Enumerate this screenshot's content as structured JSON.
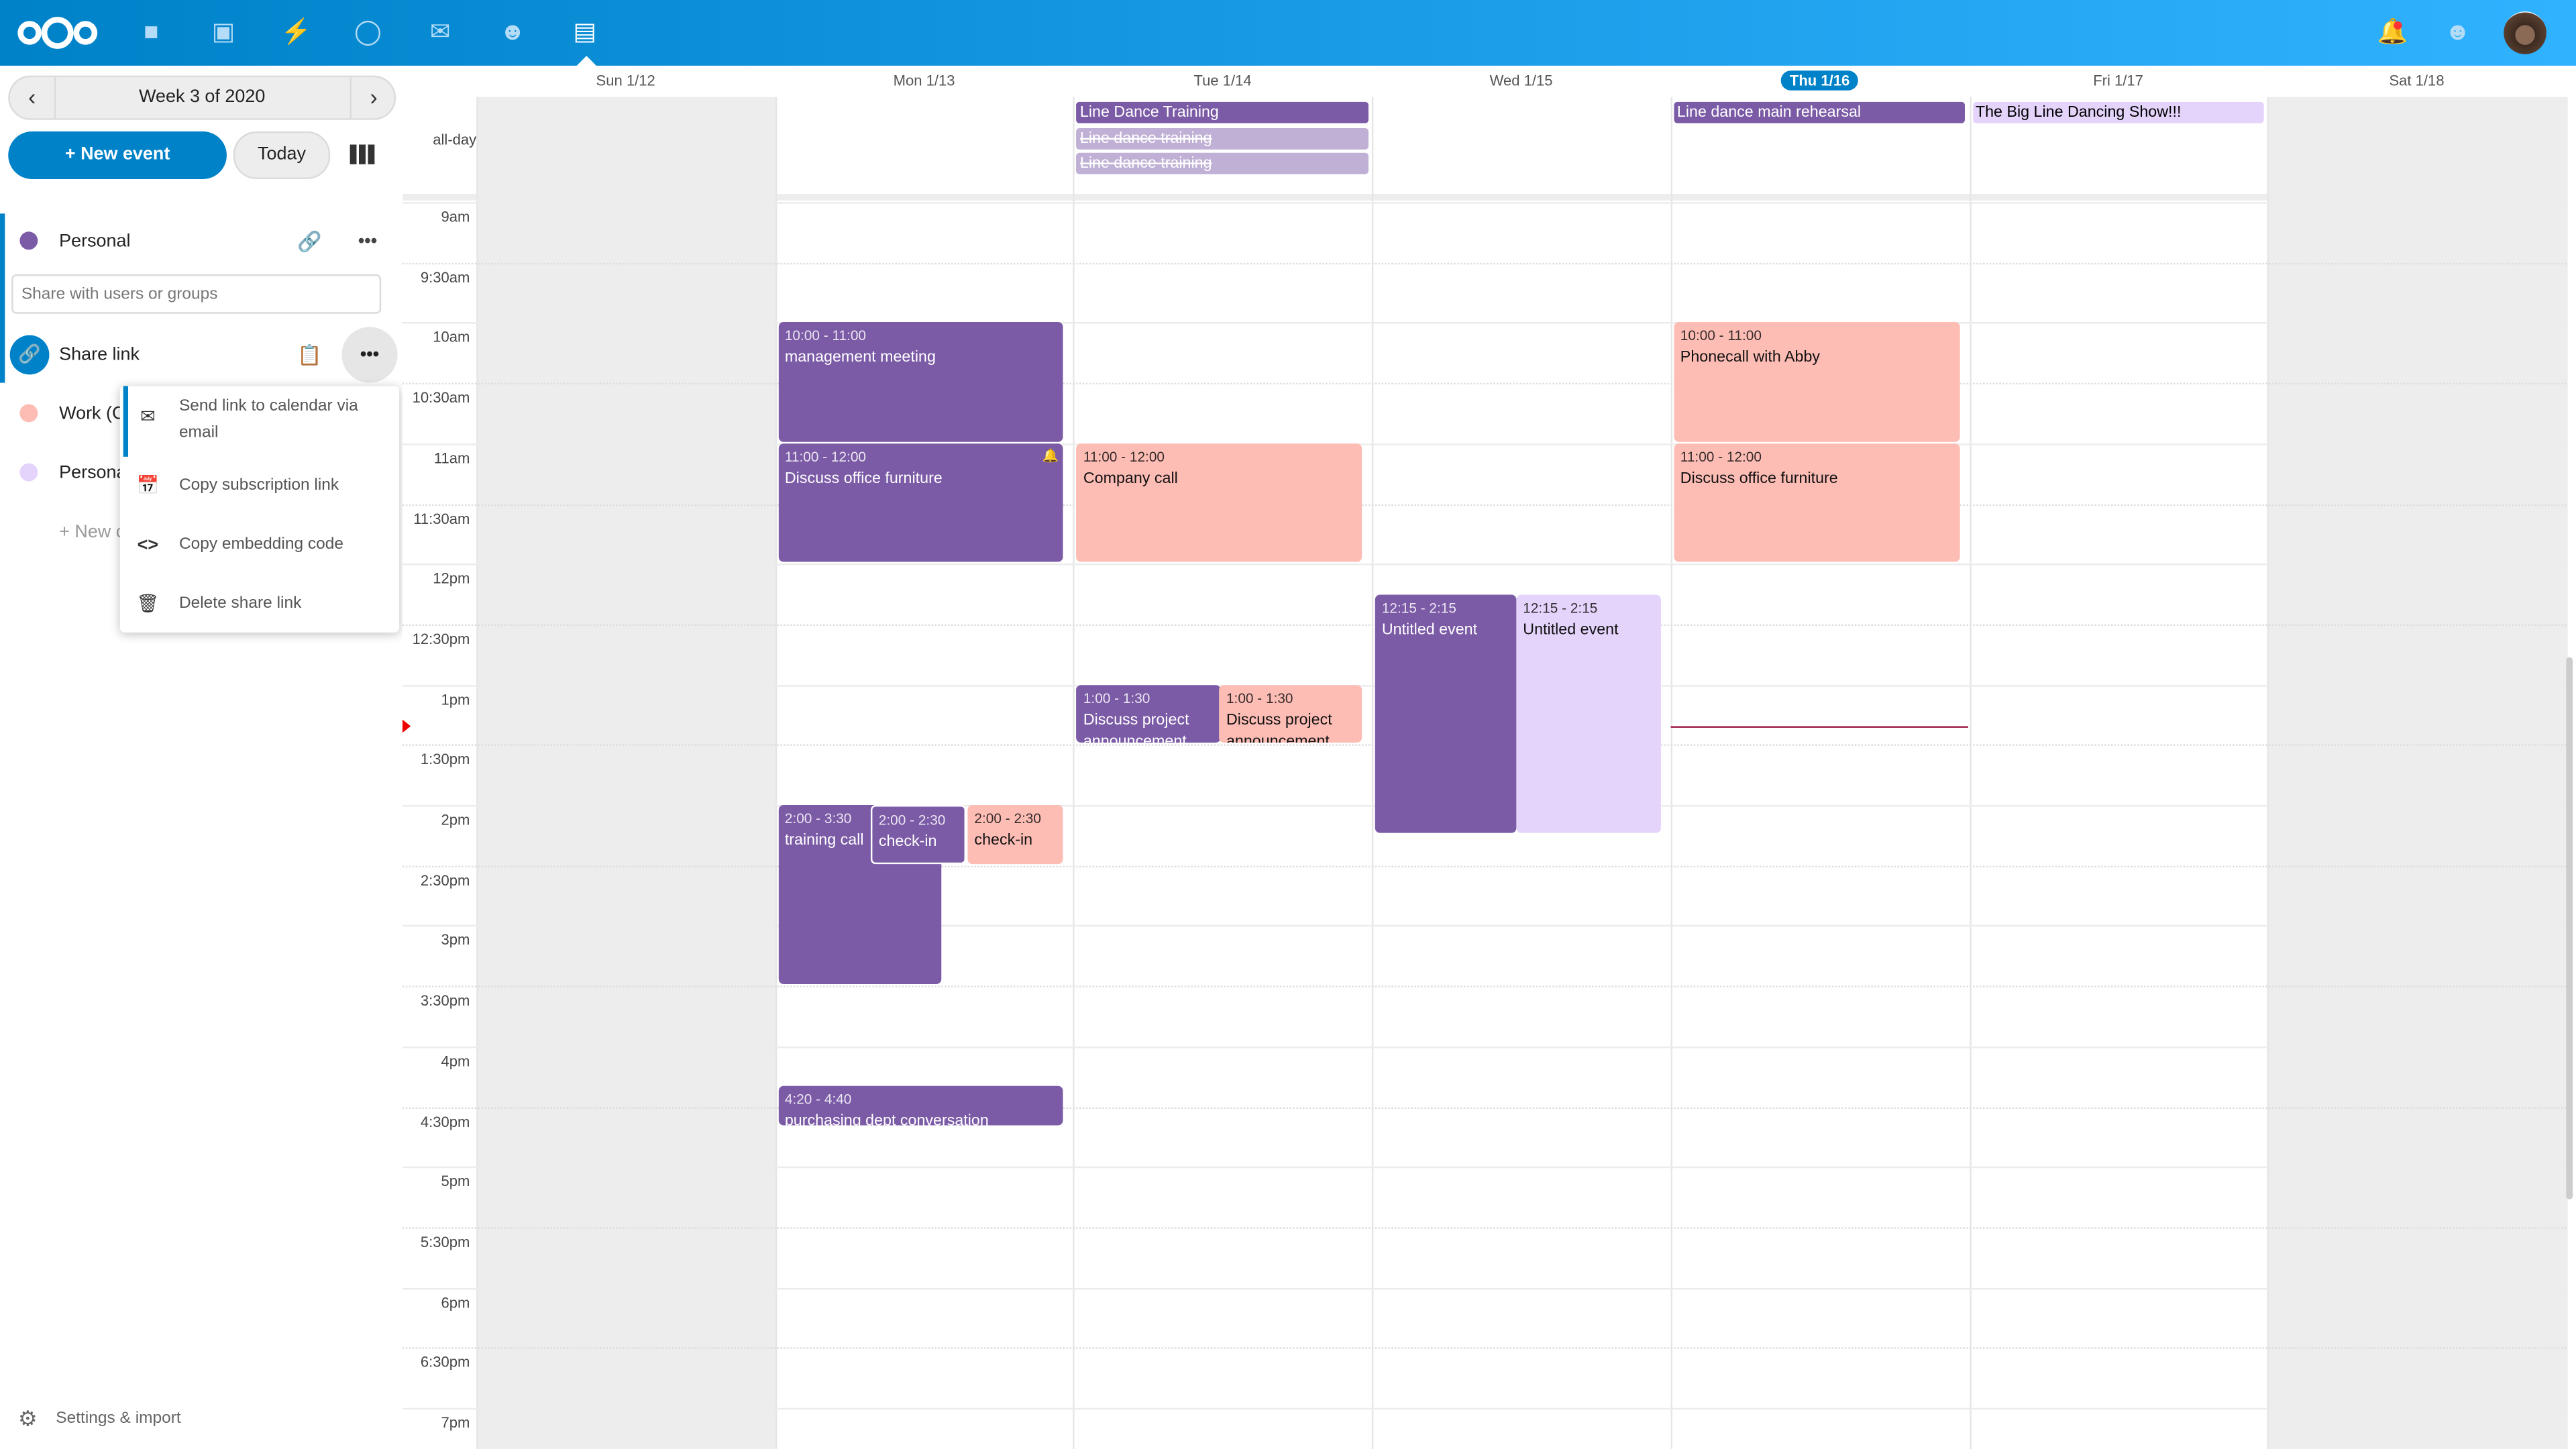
{
  "header": {
    "apps": [
      "files-icon",
      "photos-icon",
      "activity-icon",
      "talk-icon",
      "mail-icon",
      "contacts-icon",
      "calendar-icon"
    ],
    "right_icons": [
      "notifications-icon",
      "contacts-menu-icon",
      "avatar"
    ]
  },
  "sidebar": {
    "week_label": "Week 3 of 2020",
    "new_event": "+ New event",
    "today": "Today",
    "calendars": [
      {
        "name": "Personal",
        "color": "#7b5aa6"
      },
      {
        "name": "Work (C",
        "color": "#fdbdb5"
      },
      {
        "name": "Persona",
        "color": "#e4d4fb"
      }
    ],
    "share_placeholder": "Share with users or groups",
    "share_link": "Share link",
    "new_calendar": "+ New c",
    "menu": [
      "Send link to calendar via email",
      "Copy subscription link",
      "Copy embedding code",
      "Delete share link"
    ],
    "settings": "Settings & import"
  },
  "calendar": {
    "allday_label": "all-day",
    "days": [
      "Sun 1/12",
      "Mon 1/13",
      "Tue 1/14",
      "Wed 1/15",
      "Thu 1/16",
      "Fri 1/17",
      "Sat 1/18"
    ],
    "today_index": 4,
    "times": [
      "9am",
      "9:30am",
      "10am",
      "10:30am",
      "11am",
      "11:30am",
      "12pm",
      "12:30pm",
      "1pm",
      "1:30pm",
      "2pm",
      "2:30pm",
      "3pm",
      "3:30pm",
      "4pm",
      "4:30pm",
      "5pm",
      "5:30pm",
      "6pm",
      "6:30pm",
      "7pm"
    ],
    "allday_events": [
      {
        "day": 2,
        "title": "Line Dance Training",
        "color": "#7b5aa6",
        "struck": false
      },
      {
        "day": 2,
        "title": "Line dance training",
        "color": "#c0b0d5",
        "struck": true
      },
      {
        "day": 2,
        "title": "Line dance training",
        "color": "#c0b0d5",
        "struck": true
      },
      {
        "day": 4,
        "title": "Line dance main rehearsal",
        "color": "#7b5aa6",
        "struck": false
      },
      {
        "day": 5,
        "title": "The Big Line Dancing Show!!!",
        "color": "#e4d4fb",
        "struck": false
      }
    ],
    "events": [
      {
        "day": 1,
        "time": "10:00 - 11:00",
        "title": "management meeting",
        "color": "#7b5aa6"
      },
      {
        "day": 1,
        "time": "11:00 - 12:00",
        "title": "Discuss office furniture",
        "color": "#7b5aa6",
        "alarm": true
      },
      {
        "day": 1,
        "time": "2:00 - 3:30",
        "title": "training call",
        "color": "#7b5aa6"
      },
      {
        "day": 1,
        "time": "2:00 - 2:30",
        "title": "check-in",
        "color": "#7b5aa6"
      },
      {
        "day": 1,
        "time": "2:00 - 2:30",
        "title": "check-in",
        "color": "#fdbdb5"
      },
      {
        "day": 1,
        "time": "4:20 - 4:40",
        "title": "purchasing dept conversation",
        "color": "#7b5aa6"
      },
      {
        "day": 2,
        "time": "11:00 - 12:00",
        "title": "Company call",
        "color": "#fdbdb5"
      },
      {
        "day": 2,
        "time": "1:00 - 1:30",
        "title": "Discuss project announcement",
        "color": "#7b5aa6"
      },
      {
        "day": 2,
        "time": "1:00 - 1:30",
        "title": "Discuss project announcement",
        "color": "#fdbdb5"
      },
      {
        "day": 3,
        "time": "12:15 - 2:15",
        "title": "Untitled event",
        "color": "#7b5aa6"
      },
      {
        "day": 3,
        "time": "12:15 - 2:15",
        "title": "Untitled event",
        "color": "#e4d4fb"
      },
      {
        "day": 4,
        "time": "10:00 - 11:00",
        "title": "Phonecall with Abby",
        "color": "#fdbdb5"
      },
      {
        "day": 4,
        "time": "11:00 - 12:00",
        "title": "Discuss office furniture",
        "color": "#fdbdb5"
      }
    ],
    "current_time": "1:21pm"
  }
}
